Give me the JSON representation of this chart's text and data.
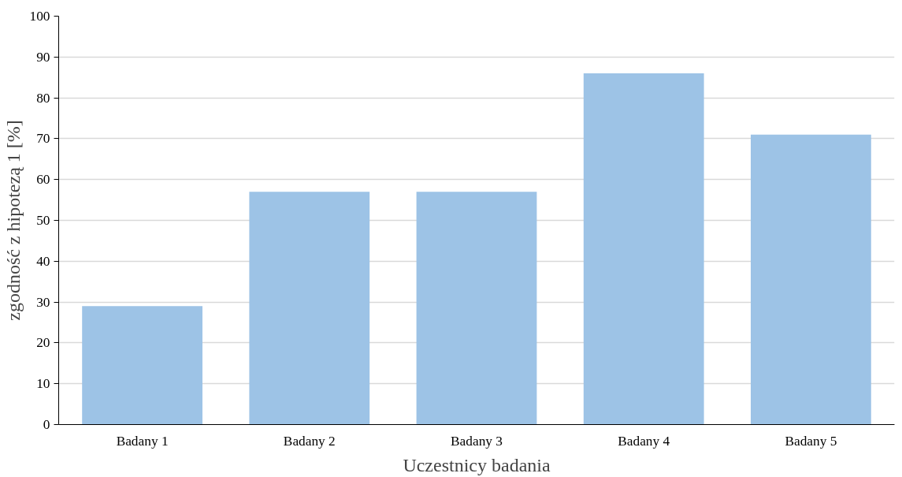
{
  "chart_data": {
    "type": "bar",
    "xlabel": "Uczestnicy badania",
    "ylabel": "zgodność z hipotezą 1 [%]",
    "categories": [
      "Badany 1",
      "Badany 2",
      "Badany 3",
      "Badany 4",
      "Badany 5"
    ],
    "values": [
      29,
      57,
      57,
      86,
      71
    ],
    "color": "#9dc3e6",
    "ylim": [
      0,
      100
    ],
    "yticks": [
      0,
      10,
      20,
      30,
      40,
      50,
      60,
      70,
      80,
      90,
      100
    ],
    "grid": "y"
  }
}
